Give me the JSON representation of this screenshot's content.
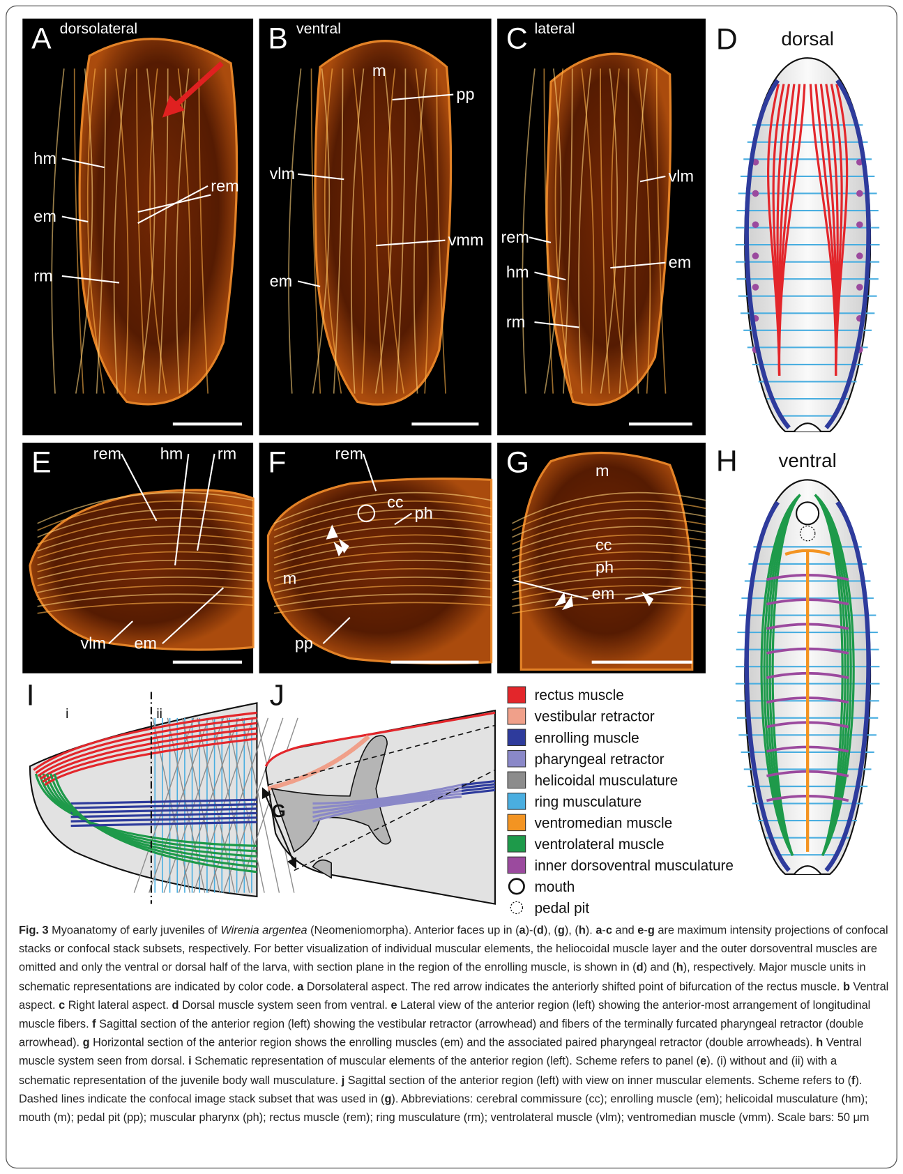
{
  "panels": [
    {
      "letter": "A",
      "view": "dorsolateral",
      "labels": [
        "hm",
        "rem",
        "em",
        "rm"
      ]
    },
    {
      "letter": "B",
      "view": "ventral",
      "labels": [
        "m",
        "pp",
        "vlm",
        "vmm",
        "em"
      ]
    },
    {
      "letter": "C",
      "view": "lateral",
      "labels": [
        "vlm",
        "rem",
        "em",
        "hm",
        "rm"
      ]
    },
    {
      "letter": "D",
      "view": "dorsal"
    },
    {
      "letter": "E",
      "labels": [
        "rem",
        "hm",
        "rm",
        "vlm",
        "em"
      ]
    },
    {
      "letter": "F",
      "labels": [
        "rem",
        "cc",
        "ph",
        "m",
        "pp"
      ]
    },
    {
      "letter": "G",
      "labels": [
        "m",
        "cc",
        "ph",
        "em"
      ]
    },
    {
      "letter": "H",
      "view": "ventral"
    },
    {
      "letter": "I",
      "labels": [
        "i",
        "ii"
      ]
    },
    {
      "letter": "J",
      "labels": [
        "G"
      ]
    }
  ],
  "legend": [
    {
      "label": "rectus muscle",
      "color": "#e3262b"
    },
    {
      "label": "vestibular retractor",
      "color": "#f0a08a"
    },
    {
      "label": "enrolling muscle",
      "color": "#2e3b9c"
    },
    {
      "label": "pharyngeal retractor",
      "color": "#8a88c8"
    },
    {
      "label": "helicoidal musculature",
      "color": "#8c8c8c"
    },
    {
      "label": "ring musculature",
      "color": "#4aaee0"
    },
    {
      "label": "ventromedian muscle",
      "color": "#f39422"
    },
    {
      "label": "ventrolateral muscle",
      "color": "#1e9a4a"
    },
    {
      "label": "inner dorsoventral musculature",
      "color": "#9b4a9e"
    },
    {
      "label": "mouth",
      "marker": "circle"
    },
    {
      "label": "pedal pit",
      "marker": "dashed-circle"
    }
  ],
  "caption": [
    {
      "bold": "Fig. 3"
    },
    " Myoanatomy of early juveniles of ",
    {
      "italic": "Wirenia argentea"
    },
    " (Neomeniomorpha). Anterior faces up in (",
    {
      "bold": "a"
    },
    ")-(",
    {
      "bold": "d"
    },
    "), (",
    {
      "bold": "g"
    },
    "), (",
    {
      "bold": "h"
    },
    "). ",
    {
      "bold": "a"
    },
    "-",
    {
      "bold": "c"
    },
    " and ",
    {
      "bold": "e"
    },
    "-",
    {
      "bold": "g"
    },
    " are maximum intensity projections of confocal stacks or confocal stack subsets, respectively. For better visualization of individual muscular elements, the heliocoidal muscle layer and the outer dorsoventral muscles are omitted and only the ventral or dorsal half of the larva, with section plane in the region of the enrolling muscle, is shown in (",
    {
      "bold": "d"
    },
    ") and (",
    {
      "bold": "h"
    },
    "), respectively. Major muscle units in schematic representations are indicated by color code. ",
    {
      "bold": "a"
    },
    " Dorsolateral aspect. The red arrow indicates the anteriorly shifted point of bifurcation of the rectus muscle. ",
    {
      "bold": "b"
    },
    " Ventral aspect. ",
    {
      "bold": "c"
    },
    " Right lateral aspect. ",
    {
      "bold": "d"
    },
    " Dorsal muscle system seen from ventral. ",
    {
      "bold": "e"
    },
    " Lateral view of the anterior region (left) showing the anterior-most arrangement of longitudinal muscle fibers. ",
    {
      "bold": "f"
    },
    " Sagittal section of the anterior region (left) showing the vestibular retractor (arrowhead) and fibers of the terminally furcated pharyngeal retractor (double arrowhead). ",
    {
      "bold": "g"
    },
    " Horizontal section of the anterior region shows the enrolling muscles (em) and the associated paired pharyngeal retractor (double arrowheads). ",
    {
      "bold": "h"
    },
    " Ventral muscle system seen from dorsal. ",
    {
      "bold": "i"
    },
    " Schematic representation of muscular elements of the anterior region (left). Scheme refers to panel (",
    {
      "bold": "e"
    },
    "). (i) without and (ii) with a schematic representation of the juvenile body wall musculature. ",
    {
      "bold": "j"
    },
    " Sagittal section of the anterior region (left) with view on inner muscular elements. Scheme refers to (",
    {
      "bold": "f"
    },
    "). Dashed lines indicate the confocal image stack subset that was used in (",
    {
      "bold": "g"
    },
    "). Abbreviations: cerebral commissure (cc); enrolling muscle (em); helicoidal musculature (hm); mouth (m); pedal pit (pp); muscular pharynx (ph); rectus muscle (rem); ring musculature (rm); ventrolateral muscle (vlm); ventromedian muscle (vmm). Scale bars: 50 μm"
  ]
}
